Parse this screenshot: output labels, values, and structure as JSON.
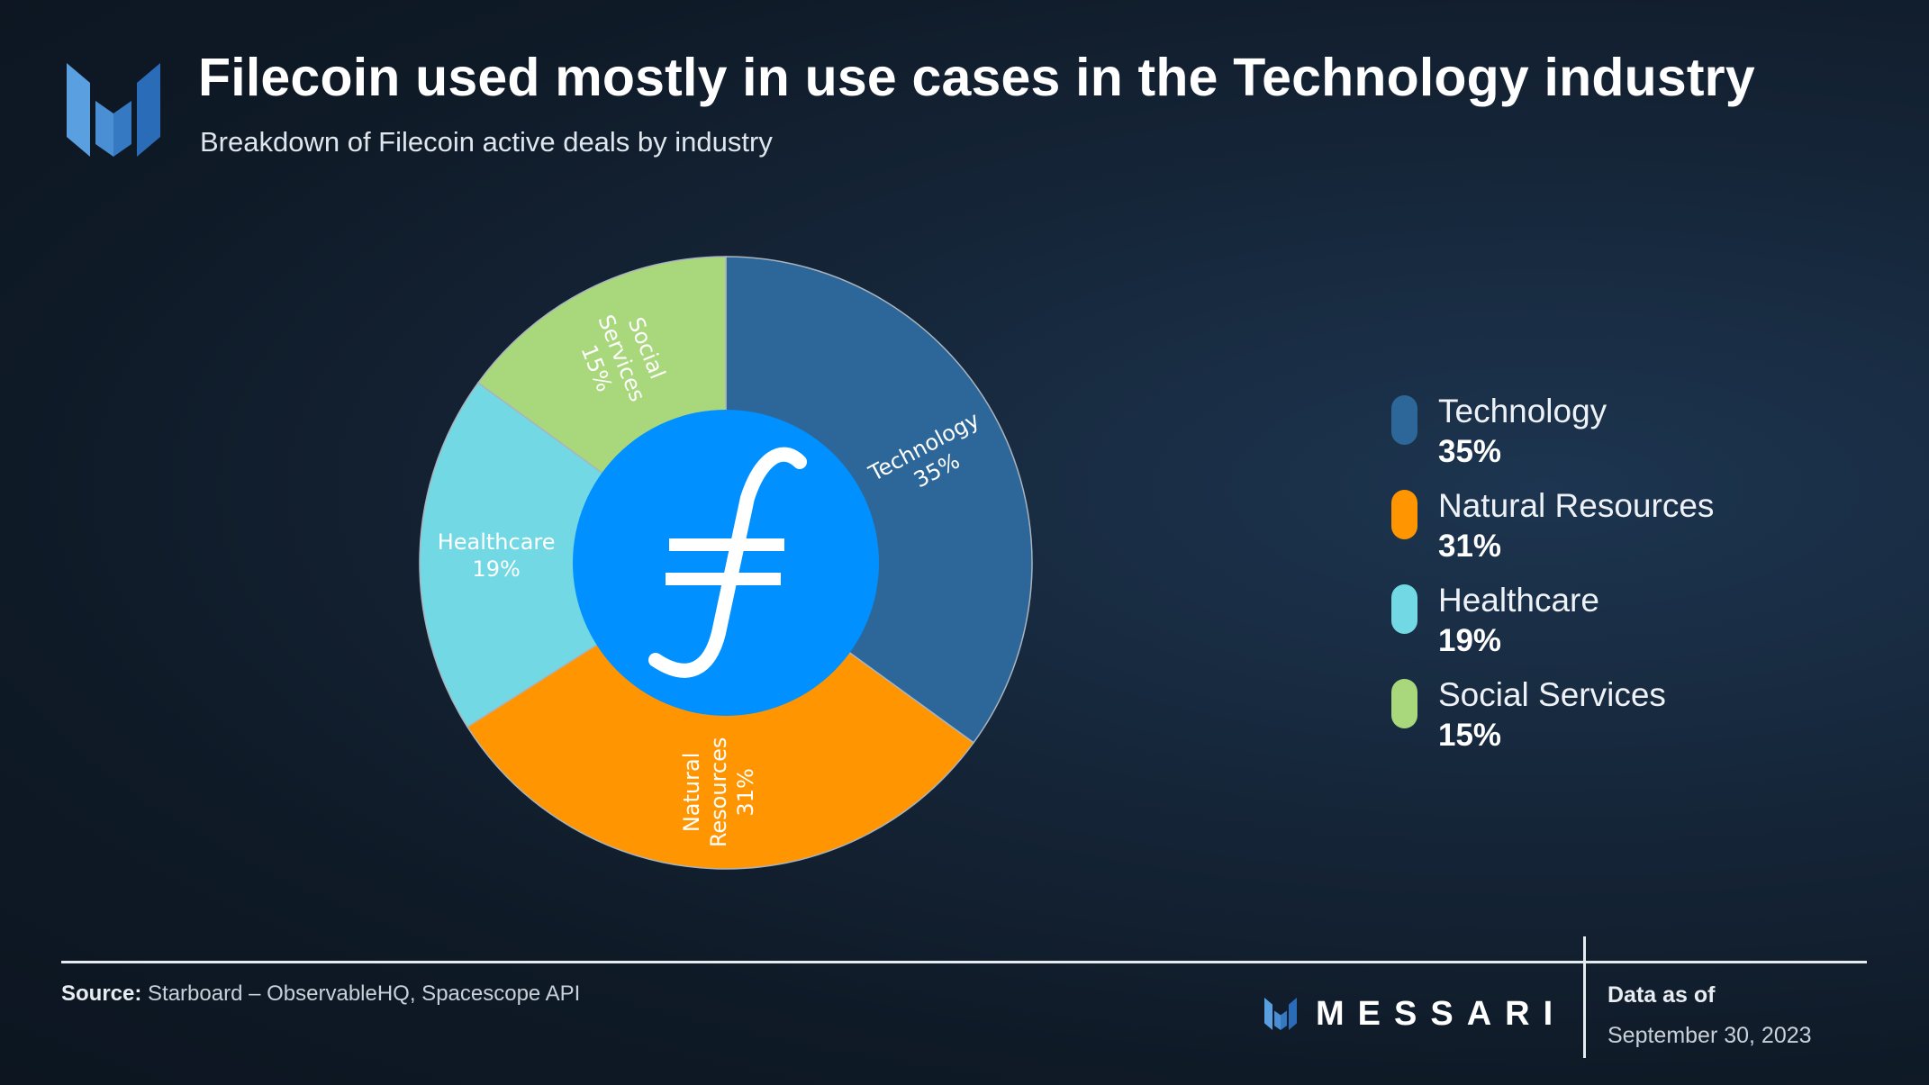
{
  "header": {
    "title": "Filecoin used mostly in use cases in the Technology industry",
    "subtitle": "Breakdown of Filecoin active deals by industry"
  },
  "chart_data": {
    "type": "pie",
    "title": "Filecoin used mostly in use cases in the Technology industry",
    "subtitle": "Breakdown of Filecoin active deals by industry",
    "center_icon": "filecoin-logo-icon",
    "slices": [
      {
        "name": "Technology",
        "value": 35,
        "label": "35%",
        "label_lines": [
          "Technology",
          "35%"
        ],
        "color": "#2d6799"
      },
      {
        "name": "Natural Resources",
        "value": 31,
        "label": "31%",
        "label_lines": [
          "Natural",
          "Resources",
          "31%"
        ],
        "color": "#ff9500"
      },
      {
        "name": "Healthcare",
        "value": 19,
        "label": "19%",
        "label_lines": [
          "Healthcare",
          "19%"
        ],
        "color": "#72d9e4"
      },
      {
        "name": "Social Services",
        "value": 15,
        "label": "15%",
        "label_lines": [
          "Social",
          "Services",
          "15%"
        ],
        "color": "#a9d77b"
      }
    ],
    "legend_position": "right"
  },
  "colors": {
    "filecoin_blue": "#0090ff",
    "messari_blue": "#3a8fd8"
  },
  "footer": {
    "source_label": "Source:",
    "source_text": "Starboard – ObservableHQ, Spacescope API",
    "brand": "MESSARI",
    "asof_label": "Data as of",
    "asof_date": "September 30, 2023"
  }
}
